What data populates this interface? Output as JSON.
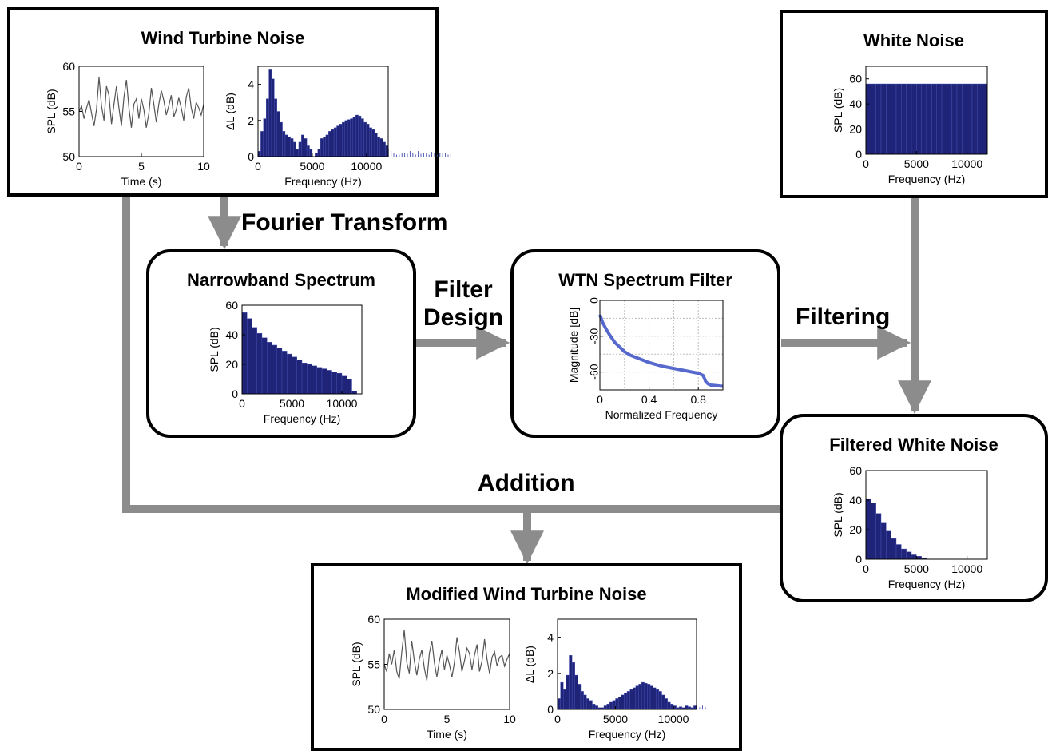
{
  "colors": {
    "bar_fill": "#1f2478",
    "bar_edge": "#4a55b8",
    "line": "#555555",
    "filter_line": "#3a4fc4",
    "arrow": "#8c8c8c",
    "grid": "#bdbdbd"
  },
  "steps": {
    "fourier": "Fourier Transform",
    "filter_design_1": "Filter",
    "filter_design_2": "Design",
    "filtering": "Filtering",
    "addition": "Addition"
  },
  "boxes": {
    "wtn": {
      "title": "Wind Turbine Noise",
      "time_plot": {
        "type": "line",
        "xlabel": "Time (s)",
        "ylabel": "SPL (dB)",
        "xlim": [
          0,
          10
        ],
        "ylim": [
          50,
          60
        ],
        "xticks": [
          "0",
          "5",
          "10"
        ],
        "yticks": [
          "50",
          "55",
          "60"
        ],
        "x": [
          0,
          0.2,
          0.4,
          0.6,
          0.8,
          1.0,
          1.2,
          1.4,
          1.6,
          1.8,
          2.0,
          2.2,
          2.4,
          2.6,
          2.8,
          3.0,
          3.2,
          3.4,
          3.6,
          3.8,
          4.0,
          4.2,
          4.4,
          4.6,
          4.8,
          5.0,
          5.2,
          5.4,
          5.6,
          5.8,
          6.0,
          6.2,
          6.4,
          6.6,
          6.8,
          7.0,
          7.2,
          7.4,
          7.6,
          7.8,
          8.0,
          8.2,
          8.4,
          8.6,
          8.8,
          9.0,
          9.2,
          9.4,
          9.6,
          9.8,
          10.0
        ],
        "y": [
          55,
          55.6,
          54.2,
          55.4,
          56.3,
          54.8,
          53.4,
          55.2,
          58.8,
          55.6,
          54,
          57.8,
          56.8,
          53.6,
          55.8,
          57.8,
          55.4,
          53.4,
          56.6,
          58.5,
          55.4,
          53.2,
          55.8,
          56.4,
          54.2,
          56.4,
          55.2,
          53.2,
          54.8,
          57.6,
          55.8,
          53.8,
          55.8,
          57.3,
          56.2,
          54.6,
          55.6,
          56.8,
          54.4,
          55.2,
          56.5,
          55.4,
          54,
          56.6,
          57.6,
          55.4,
          54.2,
          56,
          55.4,
          54.6,
          55.8
        ]
      },
      "spectrum_plot": {
        "type": "bar",
        "xlabel": "Frequency (Hz)",
        "ylabel": "ΔL (dB)",
        "xlim": [
          0,
          12000
        ],
        "ylim": [
          0,
          5
        ],
        "xticks": [
          "0",
          "5000",
          "10000"
        ],
        "yticks": [
          "0",
          "2",
          "4"
        ],
        "bin_width": 250,
        "values": [
          0.3,
          1.4,
          2.1,
          3.2,
          4.85,
          4.3,
          3.2,
          2.5,
          1.9,
          1.4,
          1.2,
          1.1,
          1.0,
          0.8,
          0.4,
          0.8,
          1.2,
          1.0,
          0.6,
          0.4,
          0,
          0.2,
          0.4,
          1.0,
          1.1,
          1.2,
          1.4,
          1.5,
          1.6,
          1.7,
          1.8,
          1.9,
          2.0,
          2.05,
          2.1,
          2.2,
          2.3,
          2.25,
          2.1,
          1.9,
          1.8,
          1.6,
          1.5,
          1.3,
          1.1,
          1.0,
          0.8,
          0.6,
          0.4,
          0.3,
          0.2,
          0.1,
          0.1,
          0.2,
          0.2,
          0.15,
          0.3,
          0.2,
          0.1,
          0.3,
          0.15,
          0.2,
          0.2,
          0.1,
          0.25,
          0.2,
          0.1,
          0.2,
          0.15,
          0.2,
          0.1,
          0.2
        ]
      }
    },
    "white": {
      "title": "White Noise",
      "spectrum_plot": {
        "type": "bar",
        "xlabel": "Frequency (Hz)",
        "ylabel": "SPL (dB)",
        "xlim": [
          0,
          12000
        ],
        "ylim": [
          0,
          70
        ],
        "xticks": [
          "0",
          "5000",
          "10000"
        ],
        "yticks": [
          "0",
          "20",
          "40",
          "60"
        ],
        "bin_width": 500,
        "values": [
          56,
          56,
          56,
          56,
          56,
          56,
          56,
          56,
          56,
          56,
          56,
          56,
          56,
          56,
          56,
          56,
          56,
          56,
          56,
          56,
          56,
          56,
          56,
          56
        ]
      }
    },
    "narrowband": {
      "title": "Narrowband Spectrum",
      "spectrum_plot": {
        "type": "bar",
        "xlabel": "Frequency (Hz)",
        "ylabel": "SPL (dB)",
        "xlim": [
          0,
          12000
        ],
        "ylim": [
          0,
          60
        ],
        "xticks": [
          "0",
          "5000",
          "10000"
        ],
        "yticks": [
          "0",
          "20",
          "40",
          "60"
        ],
        "bin_width": 500,
        "values": [
          55,
          51,
          45,
          41,
          38,
          35,
          33,
          31,
          29,
          27,
          25,
          23,
          21,
          20,
          19,
          18,
          17,
          16,
          15,
          14,
          12,
          10,
          2
        ]
      }
    },
    "filter": {
      "title": "WTN Spectrum Filter",
      "magnitude_plot": {
        "type": "line",
        "xlabel": "Normalized Frequency",
        "ylabel": "Magnitude [dB]",
        "xlim": [
          0,
          1
        ],
        "ylim": [
          -75,
          0
        ],
        "xticks": [
          "0",
          "0.4",
          "0.8"
        ],
        "yticks": [
          "0",
          "-30",
          "-60"
        ],
        "x": [
          0,
          0.02,
          0.05,
          0.08,
          0.12,
          0.16,
          0.2,
          0.25,
          0.3,
          0.35,
          0.4,
          0.45,
          0.5,
          0.55,
          0.6,
          0.65,
          0.7,
          0.75,
          0.8,
          0.82,
          0.84,
          0.86,
          0.88,
          0.9,
          0.95,
          1.0
        ],
        "y": [
          -12,
          -18,
          -24,
          -29,
          -35,
          -39,
          -43,
          -46,
          -48,
          -50,
          -52,
          -53.5,
          -55,
          -56,
          -57,
          -58,
          -59,
          -60,
          -61,
          -62,
          -63,
          -68,
          -70,
          -71,
          -71.5,
          -72
        ]
      }
    },
    "filtered": {
      "title": "Filtered White Noise",
      "spectrum_plot": {
        "type": "bar",
        "xlabel": "Frequency (Hz)",
        "ylabel": "SPL (dB)",
        "xlim": [
          0,
          12000
        ],
        "ylim": [
          0,
          60
        ],
        "xticks": [
          "0",
          "5000",
          "10000"
        ],
        "yticks": [
          "0",
          "20",
          "40",
          "60"
        ],
        "bin_width": 500,
        "values": [
          41,
          38,
          31,
          25,
          19,
          14,
          10,
          7,
          5,
          3,
          2,
          1
        ]
      }
    },
    "modified": {
      "title": "Modified Wind Turbine Noise",
      "time_plot": {
        "type": "line",
        "xlabel": "Time (s)",
        "ylabel": "SPL (dB)",
        "xlim": [
          0,
          10
        ],
        "ylim": [
          50,
          60
        ],
        "xticks": [
          "0",
          "5",
          "10"
        ],
        "yticks": [
          "50",
          "55",
          "60"
        ],
        "x": [
          0,
          0.2,
          0.4,
          0.6,
          0.8,
          1.0,
          1.2,
          1.4,
          1.6,
          1.8,
          2.0,
          2.2,
          2.4,
          2.6,
          2.8,
          3.0,
          3.2,
          3.4,
          3.6,
          3.8,
          4.0,
          4.2,
          4.4,
          4.6,
          4.8,
          5.0,
          5.2,
          5.4,
          5.6,
          5.8,
          6.0,
          6.2,
          6.4,
          6.6,
          6.8,
          7.0,
          7.2,
          7.4,
          7.6,
          7.8,
          8.0,
          8.2,
          8.4,
          8.6,
          8.8,
          9.0,
          9.2,
          9.4,
          9.6,
          9.8,
          10.0
        ],
        "y": [
          55,
          54.2,
          56.2,
          55,
          56.6,
          54.2,
          53.4,
          56.4,
          58.8,
          55.2,
          54,
          57.6,
          55.4,
          53.8,
          55.6,
          56.6,
          54.6,
          53.2,
          56.2,
          57.6,
          55.2,
          53.6,
          55.4,
          56.6,
          54.4,
          56,
          55,
          53.6,
          55.2,
          58,
          56.4,
          54.2,
          55.4,
          56.8,
          56.2,
          54.4,
          56,
          57.2,
          54.2,
          55.4,
          57.8,
          55.6,
          54,
          55.8,
          56.4,
          54.8,
          55.8,
          56,
          54.8,
          55.6,
          56.2
        ]
      },
      "spectrum_plot": {
        "type": "bar",
        "xlabel": "Frequency (Hz)",
        "ylabel": "ΔL (dB)",
        "xlim": [
          0,
          12000
        ],
        "ylim": [
          0,
          5
        ],
        "xticks": [
          "0",
          "5000",
          "10000"
        ],
        "yticks": [
          "0",
          "2",
          "4"
        ],
        "bin_width": 250,
        "values": [
          0.6,
          1.5,
          1.1,
          1.9,
          3.0,
          2.6,
          1.9,
          1.4,
          1.0,
          0.8,
          0.6,
          0.5,
          0.3,
          0.2,
          0.1,
          0.1,
          0.2,
          0.3,
          0.4,
          0.5,
          0.6,
          0.7,
          0.8,
          0.9,
          1.0,
          1.1,
          1.2,
          1.3,
          1.4,
          1.5,
          1.45,
          1.4,
          1.3,
          1.2,
          1.1,
          1.0,
          0.8,
          0.6,
          0.4,
          0.3,
          0.2,
          0.1,
          0.15,
          0.1,
          0.2,
          0.15,
          0.1,
          0.2,
          0.1,
          0.1,
          0.2,
          0.1
        ]
      }
    }
  }
}
